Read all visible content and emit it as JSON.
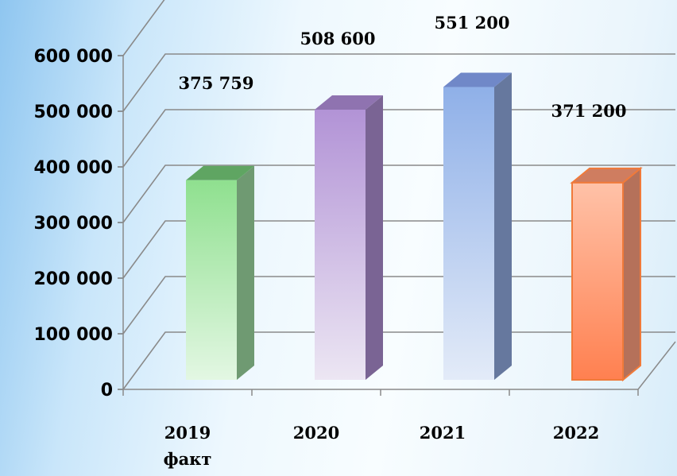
{
  "chart_data": {
    "type": "bar",
    "categories": [
      "2019 факт",
      "2020",
      "2021",
      "2022"
    ],
    "category_lines": [
      [
        "2019",
        "факт"
      ],
      [
        "2020"
      ],
      [
        "2021"
      ],
      [
        "2022"
      ]
    ],
    "values": [
      375759,
      508600,
      551200,
      371200
    ],
    "value_labels": [
      "375 759",
      "508 600",
      "551 200",
      "371 200"
    ],
    "yticks": [
      0,
      100000,
      200000,
      300000,
      400000,
      500000,
      600000
    ],
    "ytick_labels": [
      "0",
      "100 000",
      "200 000",
      "300 000",
      "400 000",
      "500 000",
      "600 000"
    ],
    "ylim": [
      0,
      600000
    ],
    "title": "",
    "xlabel": "",
    "ylabel": "",
    "grid": true,
    "bar_colors": [
      {
        "top": "#8fe08f",
        "bottom": "#e3f7e3",
        "side": "#6f9a72",
        "cap": "#5fa562"
      },
      {
        "top": "#b293d6",
        "bottom": "#ece6f3",
        "side": "#7a6494",
        "cap": "#8f73b0"
      },
      {
        "top": "#8fb0e8",
        "bottom": "#e3ebf8",
        "side": "#66789e",
        "cap": "#7088c8"
      },
      {
        "top": "#ffc2a8",
        "bottom": "#ff8050",
        "side": "#b5715a",
        "cap": "#cf7d60"
      }
    ]
  }
}
